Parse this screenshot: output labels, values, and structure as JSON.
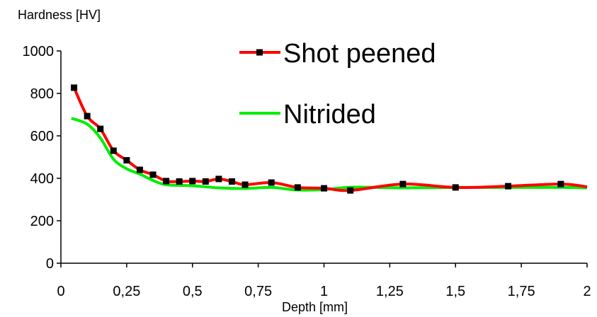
{
  "chart_data": {
    "type": "line",
    "title": "",
    "xlabel": "Depth [mm]",
    "ylabel": "Hardness [HV]",
    "xlim": [
      0,
      2
    ],
    "ylim": [
      0,
      1000
    ],
    "x_ticks": [
      {
        "value": 0,
        "label": "0"
      },
      {
        "value": 0.25,
        "label": "0,25"
      },
      {
        "value": 0.5,
        "label": "0,5"
      },
      {
        "value": 0.75,
        "label": "0,75"
      },
      {
        "value": 1,
        "label": "1"
      },
      {
        "value": 1.25,
        "label": "1,25"
      },
      {
        "value": 1.5,
        "label": "1,5"
      },
      {
        "value": 1.75,
        "label": "1,75"
      },
      {
        "value": 2,
        "label": "2"
      }
    ],
    "y_ticks": [
      {
        "value": 0,
        "label": "0"
      },
      {
        "value": 200,
        "label": "200"
      },
      {
        "value": 400,
        "label": "400"
      },
      {
        "value": 600,
        "label": "600"
      },
      {
        "value": 800,
        "label": "800"
      },
      {
        "value": 1000,
        "label": "1000"
      }
    ],
    "grid": false,
    "legend_position": "top-right",
    "series": [
      {
        "name": "Shot peened",
        "color": "#ff0000",
        "marker": "square",
        "marker_color": "#000000",
        "x": [
          0.05,
          0.1,
          0.15,
          0.2,
          0.25,
          0.3,
          0.35,
          0.4,
          0.45,
          0.5,
          0.55,
          0.6,
          0.65,
          0.7,
          0.8,
          0.9,
          1.0,
          1.1,
          1.3,
          1.5,
          1.7,
          1.9,
          2.0
        ],
        "y": [
          827,
          693,
          633,
          530,
          485,
          440,
          417,
          387,
          385,
          387,
          385,
          397,
          385,
          370,
          380,
          357,
          353,
          343,
          373,
          357,
          363,
          373,
          360
        ],
        "markers_at": [
          0.05,
          0.1,
          0.15,
          0.2,
          0.25,
          0.3,
          0.35,
          0.4,
          0.45,
          0.5,
          0.55,
          0.6,
          0.65,
          0.7,
          0.8,
          0.9,
          1.0,
          1.1,
          1.3,
          1.5,
          1.7,
          1.9
        ]
      },
      {
        "name": "Nitrided",
        "color": "#00ee00",
        "marker": "none",
        "x": [
          0.04,
          0.1,
          0.15,
          0.2,
          0.25,
          0.3,
          0.35,
          0.4,
          0.5,
          0.6,
          0.7,
          0.8,
          0.9,
          1.0,
          1.1,
          1.2,
          1.3,
          1.5,
          1.7,
          1.9,
          2.0
        ],
        "y": [
          683,
          655,
          590,
          490,
          445,
          420,
          390,
          370,
          365,
          355,
          352,
          357,
          345,
          347,
          358,
          357,
          355,
          357,
          357,
          357,
          355
        ]
      }
    ]
  }
}
